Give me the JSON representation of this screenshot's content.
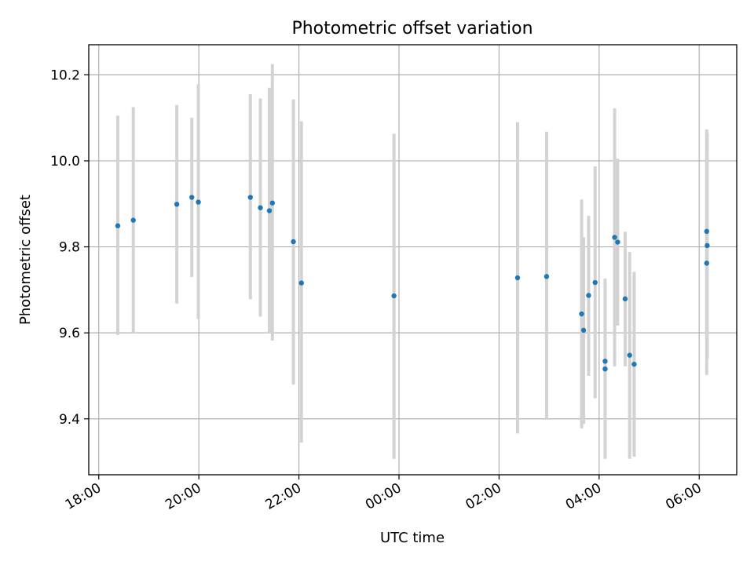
{
  "chart_data": {
    "type": "scatter",
    "title": "Photometric offset variation",
    "xlabel": "UTC time",
    "ylabel": "Photometric offset",
    "x_unit": "hours since 18:00 UTC",
    "xlim": [
      -0.2,
      12.75
    ],
    "ylim": [
      9.27,
      10.27
    ],
    "xticks": [
      {
        "value": 0,
        "label": "18:00"
      },
      {
        "value": 2,
        "label": "20:00"
      },
      {
        "value": 4,
        "label": "22:00"
      },
      {
        "value": 6,
        "label": "00:00"
      },
      {
        "value": 8,
        "label": "02:00"
      },
      {
        "value": 10,
        "label": "04:00"
      },
      {
        "value": 12,
        "label": "06:00"
      }
    ],
    "yticks": [
      {
        "value": 9.4,
        "label": "9.4"
      },
      {
        "value": 9.6,
        "label": "9.6"
      },
      {
        "value": 9.8,
        "label": "9.8"
      },
      {
        "value": 10.0,
        "label": "10.0"
      },
      {
        "value": 10.2,
        "label": "10.2"
      }
    ],
    "grid": true,
    "colors": {
      "point": "#1f77b4",
      "errorbar": "#d3d3d3",
      "grid": "#b0b0b0"
    },
    "series": [
      {
        "points": [
          {
            "x": 0.38,
            "y": 9.849,
            "low": 9.595,
            "high": 10.105
          },
          {
            "x": 0.69,
            "y": 9.862,
            "low": 9.6,
            "high": 10.125
          },
          {
            "x": 1.56,
            "y": 9.899,
            "low": 9.668,
            "high": 10.13
          },
          {
            "x": 1.86,
            "y": 9.915,
            "low": 9.73,
            "high": 10.1
          },
          {
            "x": 1.99,
            "y": 9.904,
            "low": 9.632,
            "high": 10.178
          },
          {
            "x": 3.03,
            "y": 9.915,
            "low": 9.678,
            "high": 10.155
          },
          {
            "x": 3.23,
            "y": 9.891,
            "low": 9.638,
            "high": 10.145
          },
          {
            "x": 3.41,
            "y": 9.884,
            "low": 9.6,
            "high": 10.17
          },
          {
            "x": 3.47,
            "y": 9.902,
            "low": 9.582,
            "high": 10.225
          },
          {
            "x": 3.89,
            "y": 9.812,
            "low": 9.48,
            "high": 10.143
          },
          {
            "x": 4.05,
            "y": 9.716,
            "low": 9.345,
            "high": 10.092
          },
          {
            "x": 5.9,
            "y": 9.686,
            "low": 9.307,
            "high": 10.063
          },
          {
            "x": 8.37,
            "y": 9.728,
            "low": 9.366,
            "high": 10.09
          },
          {
            "x": 8.95,
            "y": 9.731,
            "low": 9.398,
            "high": 10.068
          },
          {
            "x": 9.65,
            "y": 9.644,
            "low": 9.378,
            "high": 9.91
          },
          {
            "x": 9.69,
            "y": 9.606,
            "low": 9.388,
            "high": 9.822
          },
          {
            "x": 9.79,
            "y": 9.687,
            "low": 9.5,
            "high": 9.872
          },
          {
            "x": 9.92,
            "y": 9.717,
            "low": 9.448,
            "high": 9.987
          },
          {
            "x": 10.12,
            "y": 9.534,
            "low": 9.34,
            "high": 9.726
          },
          {
            "x": 10.12,
            "y": 9.516,
            "low": 9.307,
            "high": 9.725
          },
          {
            "x": 10.31,
            "y": 9.822,
            "low": 9.522,
            "high": 10.122
          },
          {
            "x": 10.37,
            "y": 9.811,
            "low": 9.617,
            "high": 10.005
          },
          {
            "x": 10.52,
            "y": 9.679,
            "low": 9.522,
            "high": 9.835
          },
          {
            "x": 10.61,
            "y": 9.548,
            "low": 9.307,
            "high": 9.788
          },
          {
            "x": 10.7,
            "y": 9.527,
            "low": 9.312,
            "high": 9.742
          },
          {
            "x": 12.15,
            "y": 9.836,
            "low": 9.598,
            "high": 10.073
          },
          {
            "x": 12.16,
            "y": 9.803,
            "low": 9.54,
            "high": 10.065
          },
          {
            "x": 12.15,
            "y": 9.762,
            "low": 9.502,
            "high": 10.021
          }
        ]
      }
    ]
  }
}
